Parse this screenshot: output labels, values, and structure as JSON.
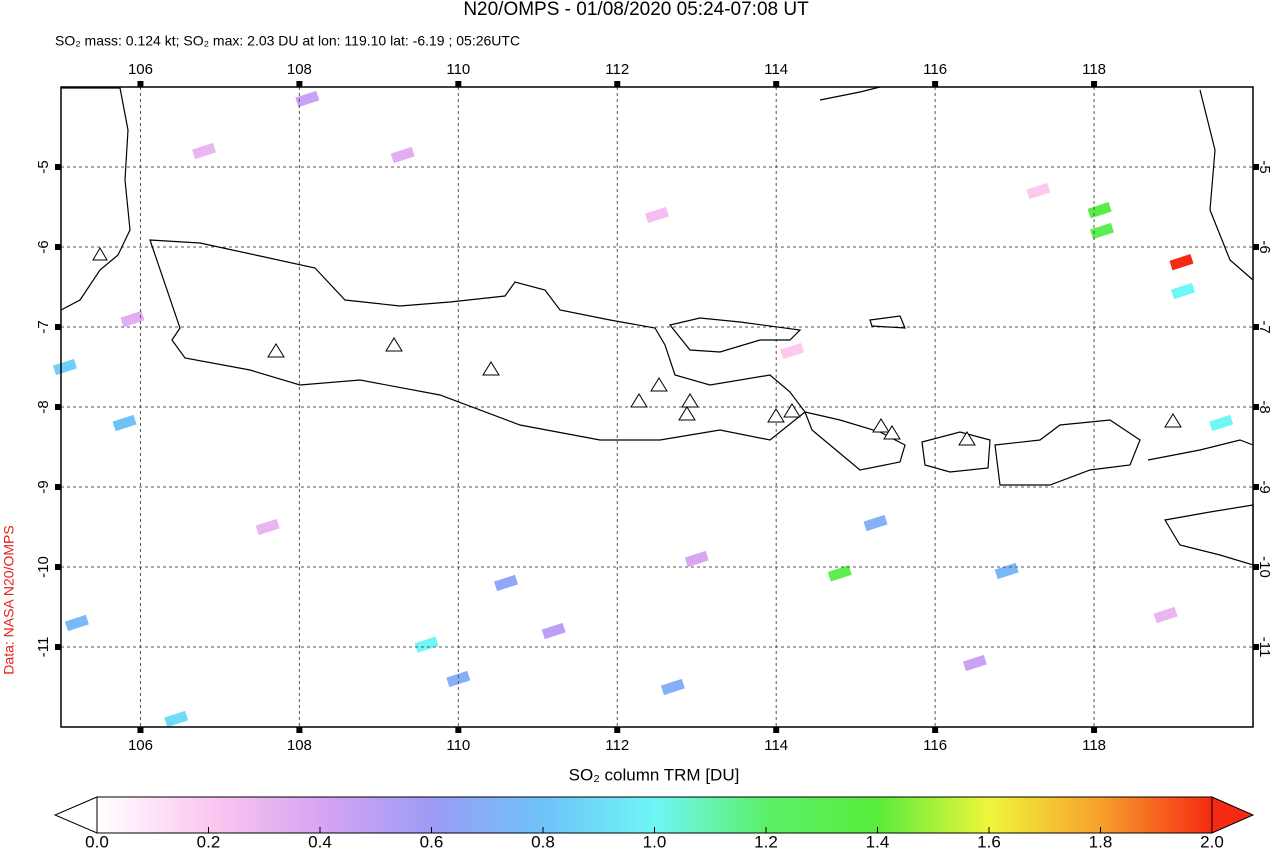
{
  "title": "N20/OMPS - 01/08/2020 05:24-07:08 UT",
  "subtitle": "SO₂ mass: 0.124 kt; SO₂ max: 2.03 DU at lon: 119.10 lat: -6.19 ; 05:26UTC",
  "credit": "Data: NASA N20/OMPS",
  "map": {
    "xlim": [
      105,
      120
    ],
    "ylim": [
      -12,
      -4
    ],
    "xticks": [
      106,
      108,
      110,
      112,
      114,
      116,
      118
    ],
    "yticks": [
      -5,
      -6,
      -7,
      -8,
      -9,
      -10,
      -11
    ],
    "grid": true,
    "pixels": [
      {
        "lon": 118.07,
        "lat": -5.54,
        "value": 1.35
      },
      {
        "lon": 118.1,
        "lat": -5.8,
        "value": 1.3
      },
      {
        "lon": 119.1,
        "lat": -6.19,
        "value": 2.03
      },
      {
        "lon": 119.12,
        "lat": -6.55,
        "value": 1.0
      },
      {
        "lon": 114.8,
        "lat": -10.08,
        "value": 1.3
      },
      {
        "lon": 109.6,
        "lat": -10.97,
        "value": 1.0
      },
      {
        "lon": 105.8,
        "lat": -8.2,
        "value": 0.8
      },
      {
        "lon": 105.05,
        "lat": -7.5,
        "value": 0.85
      },
      {
        "lon": 105.2,
        "lat": -10.7,
        "value": 0.75
      },
      {
        "lon": 106.45,
        "lat": -11.9,
        "value": 0.9
      },
      {
        "lon": 110.0,
        "lat": -11.4,
        "value": 0.7
      },
      {
        "lon": 110.6,
        "lat": -10.2,
        "value": 0.65
      },
      {
        "lon": 112.7,
        "lat": -11.5,
        "value": 0.7
      },
      {
        "lon": 116.9,
        "lat": -10.05,
        "value": 0.75
      },
      {
        "lon": 115.25,
        "lat": -9.45,
        "value": 0.7
      },
      {
        "lon": 119.6,
        "lat": -8.2,
        "value": 1.0
      },
      {
        "lon": 108.1,
        "lat": -4.15,
        "value": 0.45
      },
      {
        "lon": 106.8,
        "lat": -4.8,
        "value": 0.3
      },
      {
        "lon": 109.3,
        "lat": -4.85,
        "value": 0.35
      },
      {
        "lon": 111.2,
        "lat": -10.8,
        "value": 0.5
      },
      {
        "lon": 113.0,
        "lat": -9.9,
        "value": 0.4
      },
      {
        "lon": 107.6,
        "lat": -9.5,
        "value": 0.3
      },
      {
        "lon": 116.5,
        "lat": -11.2,
        "value": 0.45
      },
      {
        "lon": 117.3,
        "lat": -5.3,
        "value": 0.2
      },
      {
        "lon": 112.5,
        "lat": -5.6,
        "value": 0.25
      },
      {
        "lon": 105.9,
        "lat": -6.9,
        "value": 0.35
      },
      {
        "lon": 114.2,
        "lat": -7.3,
        "value": 0.2
      },
      {
        "lon": 118.9,
        "lat": -10.6,
        "value": 0.3
      }
    ]
  },
  "colorbar": {
    "label": "SO₂ column TRM [DU]",
    "lim": [
      0,
      2
    ],
    "colors": [
      "#ffffff",
      "#fbc8f0",
      "#d9a4f2",
      "#9c9cf5",
      "#6ec2f8",
      "#6ff6f6",
      "#5cf06a",
      "#58ec3a",
      "#f0f53b",
      "#f7a02c",
      "#f52a12"
    ],
    "ticks": [
      {
        "value": 0,
        "label": "0.0"
      },
      {
        "value": 0.2,
        "label": "0.2"
      },
      {
        "value": 0.4,
        "label": "0.4"
      },
      {
        "value": 0.6,
        "label": "0.6"
      },
      {
        "value": 0.8,
        "label": "0.8"
      },
      {
        "value": 1.0,
        "label": "1.0"
      },
      {
        "value": 1.2,
        "label": "1.2"
      },
      {
        "value": 1.4,
        "label": "1.4"
      },
      {
        "value": 1.6,
        "label": "1.6"
      },
      {
        "value": 1.8,
        "label": "1.8"
      },
      {
        "value": 2.0,
        "label": "2.0"
      }
    ]
  }
}
